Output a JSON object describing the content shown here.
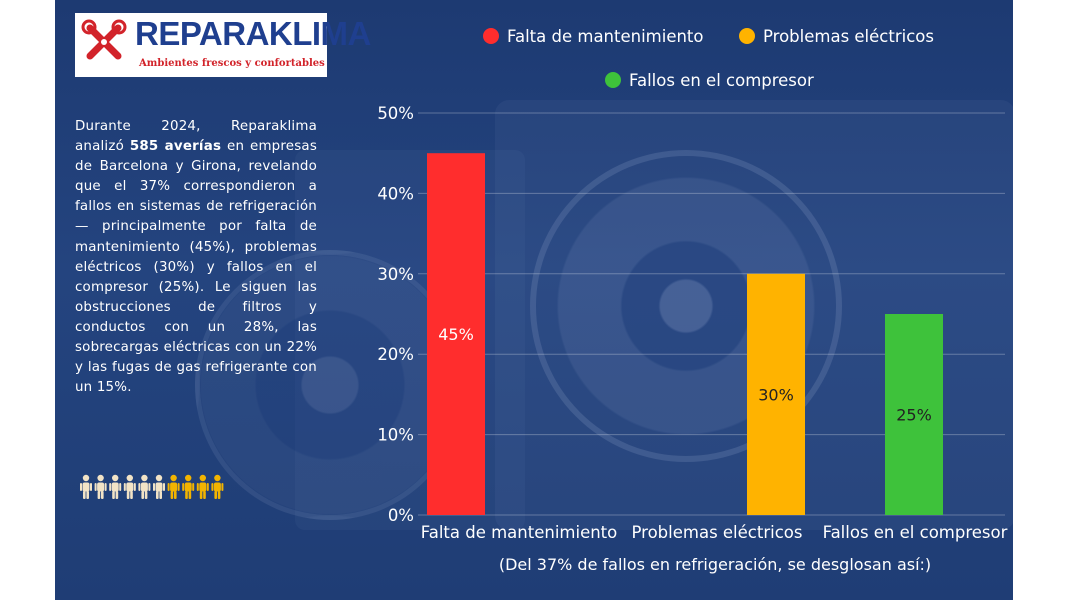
{
  "brand": {
    "name": "REPARAKLIMA",
    "tagline": "Ambientes frescos y confortables"
  },
  "description": {
    "part1": "Durante 2024, Reparaklima analizó ",
    "highlight": "585 averías",
    "part2": " en empresas de Barcelona y Girona, revelando que el 37% correspondieron a fallos en sistemas de refrigeración — principalmente por falta de mantenimiento (45%), problemas eléctricos (30%) y fallos en el compresor (25%). Le siguen las obstrucciones de filtros y conductos con un 28%, las sobrecargas eléctricas con un 22% y las fugas de gas refrigerante con un 15%."
  },
  "people_icons": {
    "total": 10,
    "highlighted": 4,
    "base_color": "#f2e3c6",
    "highlight_color": "#f2b400"
  },
  "chart_data": {
    "type": "bar",
    "categories": [
      "Falta de mantenimiento",
      "Problemas eléctricos",
      "Fallos en el compresor"
    ],
    "values": [
      45,
      30,
      25
    ],
    "value_labels": [
      "45%",
      "30%",
      "25%"
    ],
    "colors": [
      "#ff2d2d",
      "#ffb300",
      "#3ec23b"
    ],
    "label_colors": [
      "#ffffff",
      "#222222",
      "#222222"
    ],
    "legend": [
      {
        "label": "Falta de mantenimiento",
        "color": "#ff2d2d"
      },
      {
        "label": "Problemas eléctricos",
        "color": "#ffb300"
      },
      {
        "label": "Fallos en el compresor",
        "color": "#3ec23b"
      }
    ],
    "legend_position": "top",
    "ylim": [
      0,
      50
    ],
    "yticks": [
      0,
      10,
      20,
      30,
      40,
      50
    ],
    "ytick_labels": [
      "0%",
      "10%",
      "20%",
      "30%",
      "40%",
      "50%"
    ],
    "grid": true,
    "caption": "(Del 37% de fallos en refrigeración, se desglosan así:)"
  }
}
